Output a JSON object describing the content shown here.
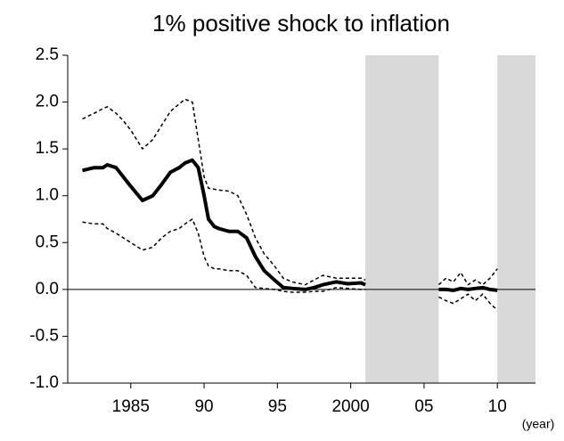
{
  "chart_data": {
    "type": "line",
    "title": "1% positive shock to inflation",
    "x_label": "(year)",
    "x": [
      1981.7,
      1982.5,
      1983.1,
      1983.4,
      1984.0,
      1984.5,
      1985.0,
      1985.8,
      1986.5,
      1987.1,
      1987.7,
      1988.3,
      1988.7,
      1989.2,
      1989.6,
      1990.0,
      1990.3,
      1990.7,
      1991.0,
      1991.7,
      1992.3,
      1992.9,
      1993.5,
      1994.1,
      1994.8,
      1995.4,
      1996.0,
      1996.9,
      1997.5,
      1998.1,
      1999.0,
      1999.8,
      2000.7,
      2001.0,
      2003.5,
      2006.0,
      2006.5,
      2007.0,
      2007.5,
      2008.0,
      2008.5,
      2009.0,
      2009.5,
      2010.0
    ],
    "series": [
      {
        "color": "#000000",
        "style": "solid",
        "width": 4,
        "values": [
          1.27,
          1.3,
          1.3,
          1.33,
          1.3,
          1.2,
          1.1,
          0.95,
          1.0,
          1.12,
          1.25,
          1.3,
          1.35,
          1.38,
          1.3,
          1.0,
          0.75,
          0.67,
          0.65,
          0.62,
          0.62,
          0.55,
          0.35,
          0.2,
          0.1,
          0.02,
          0.01,
          0.0,
          0.02,
          0.05,
          0.08,
          0.06,
          0.07,
          0.05,
          null,
          0,
          0,
          -0.01,
          0.01,
          0,
          0.01,
          0.02,
          0,
          -0.01
        ]
      },
      {
        "color": "#000000",
        "style": "dashed",
        "width": 1.5,
        "values": [
          1.82,
          1.88,
          1.93,
          1.95,
          1.88,
          1.8,
          1.7,
          1.5,
          1.6,
          1.75,
          1.9,
          1.98,
          2.03,
          2.0,
          1.6,
          1.2,
          1.08,
          1.07,
          1.06,
          1.05,
          1.0,
          0.8,
          0.55,
          0.38,
          0.25,
          0.12,
          0.08,
          0.05,
          0.1,
          0.15,
          0.12,
          0.12,
          0.12,
          0.1,
          null,
          0.05,
          0.12,
          0.08,
          0.18,
          0.05,
          0.1,
          0.05,
          0.12,
          0.22
        ]
      },
      {
        "color": "#000000",
        "style": "dashed",
        "width": 1.5,
        "values": [
          0.72,
          0.7,
          0.7,
          0.65,
          0.6,
          0.55,
          0.5,
          0.42,
          0.45,
          0.55,
          0.62,
          0.65,
          0.7,
          0.75,
          0.6,
          0.35,
          0.25,
          0.22,
          0.22,
          0.2,
          0.2,
          0.15,
          0.02,
          0.01,
          0.0,
          -0.02,
          -0.03,
          -0.03,
          -0.02,
          -0.02,
          0.02,
          0.01,
          0.0,
          0.0,
          null,
          -0.08,
          -0.12,
          -0.15,
          -0.1,
          -0.05,
          -0.12,
          -0.05,
          -0.15,
          -0.22
        ]
      }
    ],
    "shaded_regions": [
      [
        2001.0,
        2006.0
      ],
      [
        2010.0,
        2012.6
      ]
    ],
    "shade_color": "#d9d9d9",
    "xlim": [
      1980.7,
      2012.6
    ],
    "xticks": [
      {
        "value": 1985,
        "label": "1985"
      },
      {
        "value": 1990,
        "label": "90"
      },
      {
        "value": 1995,
        "label": "95"
      },
      {
        "value": 2000,
        "label": "2000"
      },
      {
        "value": 2005,
        "label": "05"
      },
      {
        "value": 2010,
        "label": "10"
      }
    ],
    "ylim": [
      -1.0,
      2.5
    ],
    "yticks": [
      {
        "value": 2.5,
        "label": "2.5"
      },
      {
        "value": 2.0,
        "label": "2.0"
      },
      {
        "value": 1.5,
        "label": "1.5"
      },
      {
        "value": 1.0,
        "label": "1.0"
      },
      {
        "value": 0.5,
        "label": "0.5"
      },
      {
        "value": 0.0,
        "label": "0.0"
      },
      {
        "value": -0.5,
        "label": "-0.5"
      },
      {
        "value": -1.0,
        "label": "-1.0"
      }
    ],
    "grid": false
  }
}
